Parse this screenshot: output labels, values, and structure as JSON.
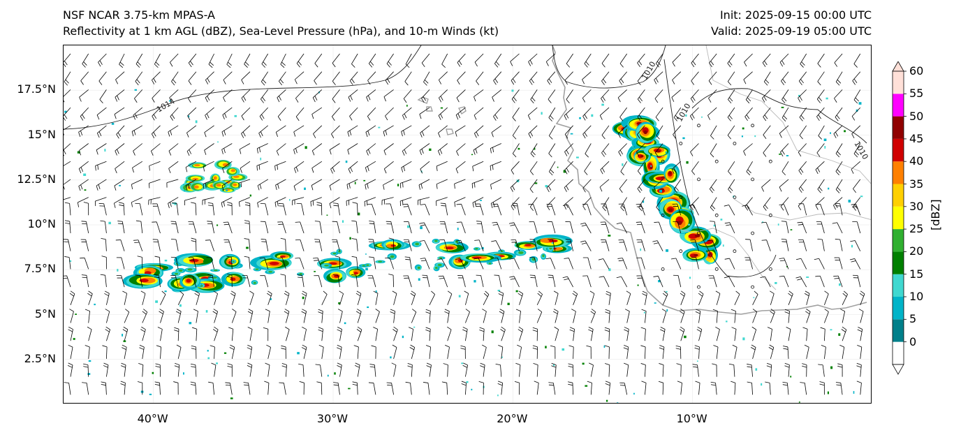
{
  "header": {
    "model": "NSF NCAR 3.75-km MPAS-A",
    "fields": "Reflectivity at 1 km AGL (dBZ), Sea-Level Pressure (hPa), and 10-m Winds (kt)",
    "init": "Init: 2025-09-15 00:00 UTC",
    "valid": "Valid: 2025-09-19 05:00 UTC"
  },
  "map": {
    "lon_range": [
      -45,
      0
    ],
    "lat_range": [
      0,
      20
    ],
    "lat_labels": [
      {
        "lat": 17.5,
        "text": "17.5°N"
      },
      {
        "lat": 15,
        "text": "15°N"
      },
      {
        "lat": 12.5,
        "text": "12.5°N"
      },
      {
        "lat": 10,
        "text": "10°N"
      },
      {
        "lat": 7.5,
        "text": "7.5°N"
      },
      {
        "lat": 5,
        "text": "5°N"
      },
      {
        "lat": 2.5,
        "text": "2.5°N"
      }
    ],
    "lon_labels": [
      {
        "lon": -40,
        "text": "40°W"
      },
      {
        "lon": -30,
        "text": "30°W"
      },
      {
        "lon": -20,
        "text": "20°W"
      },
      {
        "lon": -10,
        "text": "10°W"
      }
    ],
    "isobar_labels": [
      "1014",
      "1010",
      "1010",
      "1010"
    ],
    "colors": {
      "coast": "#a0a0a0",
      "isobar": "#202020",
      "barb": "#000000"
    }
  },
  "colorbar": {
    "title": "[dBZ]",
    "ticks": [
      "0",
      "5",
      "10",
      "15",
      "20",
      "25",
      "30",
      "35",
      "40",
      "45",
      "50",
      "55",
      "60"
    ],
    "colors": [
      "#ffffff",
      "#00808a",
      "#00b4c8",
      "#40d8d0",
      "#008000",
      "#30b030",
      "#ffff00",
      "#ffd000",
      "#ff8000",
      "#d00000",
      "#900000",
      "#ff00ff",
      "#ffe0d8"
    ]
  }
}
